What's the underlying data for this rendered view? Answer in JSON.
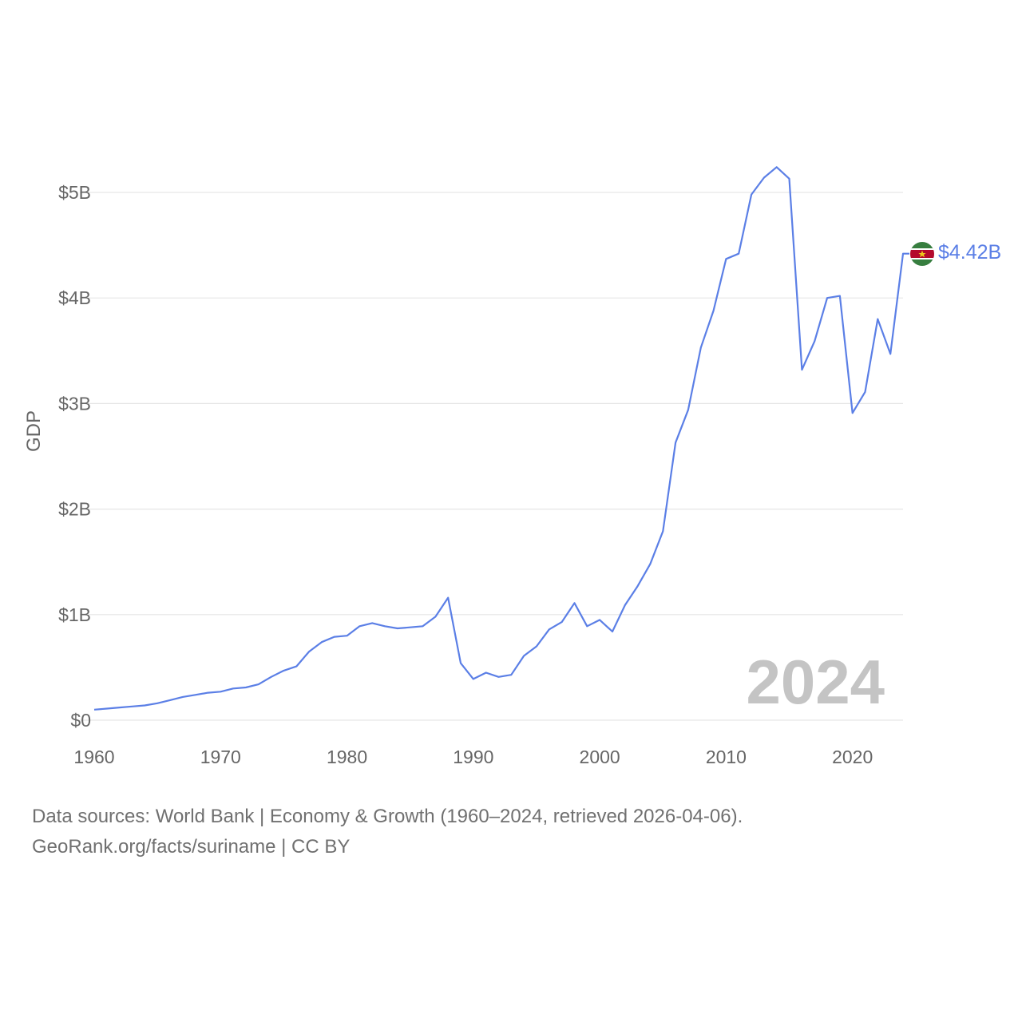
{
  "chart_data": {
    "type": "line",
    "ylabel": "GDP",
    "xlabel": "",
    "xlim": [
      1960,
      2024
    ],
    "ylim": [
      0,
      5
    ],
    "x_ticks": [
      1960,
      1970,
      1980,
      1990,
      2000,
      2010,
      2020
    ],
    "x_tick_labels": [
      "1960",
      "1970",
      "1980",
      "1990",
      "2000",
      "2010",
      "2020"
    ],
    "y_ticks": [
      0,
      1,
      2,
      3,
      4,
      5
    ],
    "y_tick_labels": [
      "$0",
      "$1B",
      "$2B",
      "$3B",
      "$4B",
      "$5B"
    ],
    "grid": true,
    "year_label": "2024",
    "end_label": "$4.42B",
    "series": [
      {
        "name": "Suriname",
        "color": "#5b7fe6",
        "x": [
          1960,
          1961,
          1962,
          1963,
          1964,
          1965,
          1966,
          1967,
          1968,
          1969,
          1970,
          1971,
          1972,
          1973,
          1974,
          1975,
          1976,
          1977,
          1978,
          1979,
          1980,
          1981,
          1982,
          1983,
          1984,
          1985,
          1986,
          1987,
          1988,
          1989,
          1990,
          1991,
          1992,
          1993,
          1994,
          1995,
          1996,
          1997,
          1998,
          1999,
          2000,
          2001,
          2002,
          2003,
          2004,
          2005,
          2006,
          2007,
          2008,
          2009,
          2010,
          2011,
          2012,
          2013,
          2014,
          2015,
          2016,
          2017,
          2018,
          2019,
          2020,
          2021,
          2022,
          2023,
          2024
        ],
        "values": [
          0.1,
          0.11,
          0.12,
          0.13,
          0.14,
          0.16,
          0.19,
          0.22,
          0.24,
          0.26,
          0.27,
          0.3,
          0.31,
          0.34,
          0.41,
          0.47,
          0.51,
          0.65,
          0.74,
          0.79,
          0.8,
          0.89,
          0.92,
          0.89,
          0.87,
          0.88,
          0.89,
          0.98,
          1.16,
          0.54,
          0.39,
          0.45,
          0.41,
          0.43,
          0.61,
          0.7,
          0.86,
          0.93,
          1.11,
          0.89,
          0.95,
          0.84,
          1.09,
          1.27,
          1.48,
          1.79,
          2.63,
          2.94,
          3.53,
          3.88,
          4.37,
          4.42,
          4.98,
          5.14,
          5.24,
          5.13,
          3.32,
          3.59,
          4.0,
          4.02,
          2.91,
          3.11,
          3.8,
          3.47,
          4.42
        ]
      }
    ]
  },
  "footer": {
    "line1": "Data sources: World Bank | Economy & Growth (1960–2024, retrieved 2026-04-06).",
    "line2": "GeoRank.org/facts/suriname | CC BY"
  }
}
